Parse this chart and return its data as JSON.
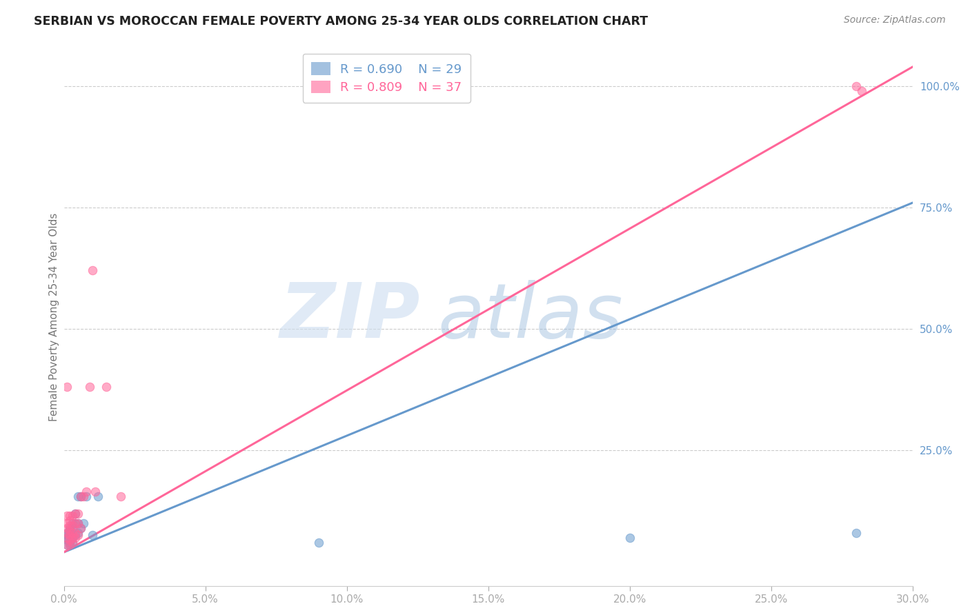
{
  "title": "SERBIAN VS MOROCCAN FEMALE POVERTY AMONG 25-34 YEAR OLDS CORRELATION CHART",
  "source_text": "Source: ZipAtlas.com",
  "ylabel": "Female Poverty Among 25-34 Year Olds",
  "xlim": [
    0.0,
    0.3
  ],
  "ylim": [
    -0.03,
    1.08
  ],
  "serbian_R": 0.69,
  "serbian_N": 29,
  "moroccan_R": 0.809,
  "moroccan_N": 37,
  "serbian_color": "#6699CC",
  "moroccan_color": "#FF6699",
  "serbian_scatter": [
    [
      0.001,
      0.055
    ],
    [
      0.001,
      0.065
    ],
    [
      0.001,
      0.07
    ],
    [
      0.001,
      0.075
    ],
    [
      0.001,
      0.08
    ],
    [
      0.002,
      0.055
    ],
    [
      0.002,
      0.06
    ],
    [
      0.002,
      0.08
    ],
    [
      0.002,
      0.085
    ],
    [
      0.002,
      0.09
    ],
    [
      0.003,
      0.06
    ],
    [
      0.003,
      0.07
    ],
    [
      0.003,
      0.09
    ],
    [
      0.003,
      0.1
    ],
    [
      0.004,
      0.075
    ],
    [
      0.004,
      0.1
    ],
    [
      0.004,
      0.12
    ],
    [
      0.005,
      0.08
    ],
    [
      0.005,
      0.1
    ],
    [
      0.005,
      0.155
    ],
    [
      0.006,
      0.09
    ],
    [
      0.006,
      0.155
    ],
    [
      0.007,
      0.1
    ],
    [
      0.008,
      0.155
    ],
    [
      0.01,
      0.075
    ],
    [
      0.012,
      0.155
    ],
    [
      0.09,
      0.06
    ],
    [
      0.2,
      0.07
    ],
    [
      0.28,
      0.08
    ]
  ],
  "moroccan_scatter": [
    [
      0.001,
      0.055
    ],
    [
      0.001,
      0.07
    ],
    [
      0.001,
      0.08
    ],
    [
      0.001,
      0.09
    ],
    [
      0.001,
      0.1
    ],
    [
      0.001,
      0.115
    ],
    [
      0.001,
      0.38
    ],
    [
      0.002,
      0.055
    ],
    [
      0.002,
      0.065
    ],
    [
      0.002,
      0.075
    ],
    [
      0.002,
      0.085
    ],
    [
      0.002,
      0.095
    ],
    [
      0.002,
      0.105
    ],
    [
      0.002,
      0.115
    ],
    [
      0.003,
      0.06
    ],
    [
      0.003,
      0.07
    ],
    [
      0.003,
      0.08
    ],
    [
      0.003,
      0.095
    ],
    [
      0.003,
      0.115
    ],
    [
      0.004,
      0.07
    ],
    [
      0.004,
      0.08
    ],
    [
      0.004,
      0.1
    ],
    [
      0.004,
      0.12
    ],
    [
      0.005,
      0.075
    ],
    [
      0.005,
      0.1
    ],
    [
      0.005,
      0.12
    ],
    [
      0.006,
      0.09
    ],
    [
      0.006,
      0.155
    ],
    [
      0.007,
      0.155
    ],
    [
      0.008,
      0.165
    ],
    [
      0.009,
      0.38
    ],
    [
      0.01,
      0.62
    ],
    [
      0.011,
      0.165
    ],
    [
      0.015,
      0.38
    ],
    [
      0.02,
      0.155
    ],
    [
      0.28,
      1.0
    ],
    [
      0.282,
      0.99
    ]
  ],
  "xtick_labels": [
    "0.0%",
    "5.0%",
    "10.0%",
    "15.0%",
    "20.0%",
    "25.0%",
    "30.0%"
  ],
  "xtick_vals": [
    0.0,
    0.05,
    0.1,
    0.15,
    0.2,
    0.25,
    0.3
  ],
  "ytick_labels": [
    "25.0%",
    "50.0%",
    "75.0%",
    "100.0%"
  ],
  "ytick_vals": [
    0.25,
    0.5,
    0.75,
    1.0
  ],
  "grid_color": "#CCCCCC",
  "background_color": "#FFFFFF",
  "serbian_line": [
    0.0,
    0.3,
    0.04,
    0.76
  ],
  "moroccan_line": [
    0.0,
    0.3,
    0.04,
    1.04
  ]
}
